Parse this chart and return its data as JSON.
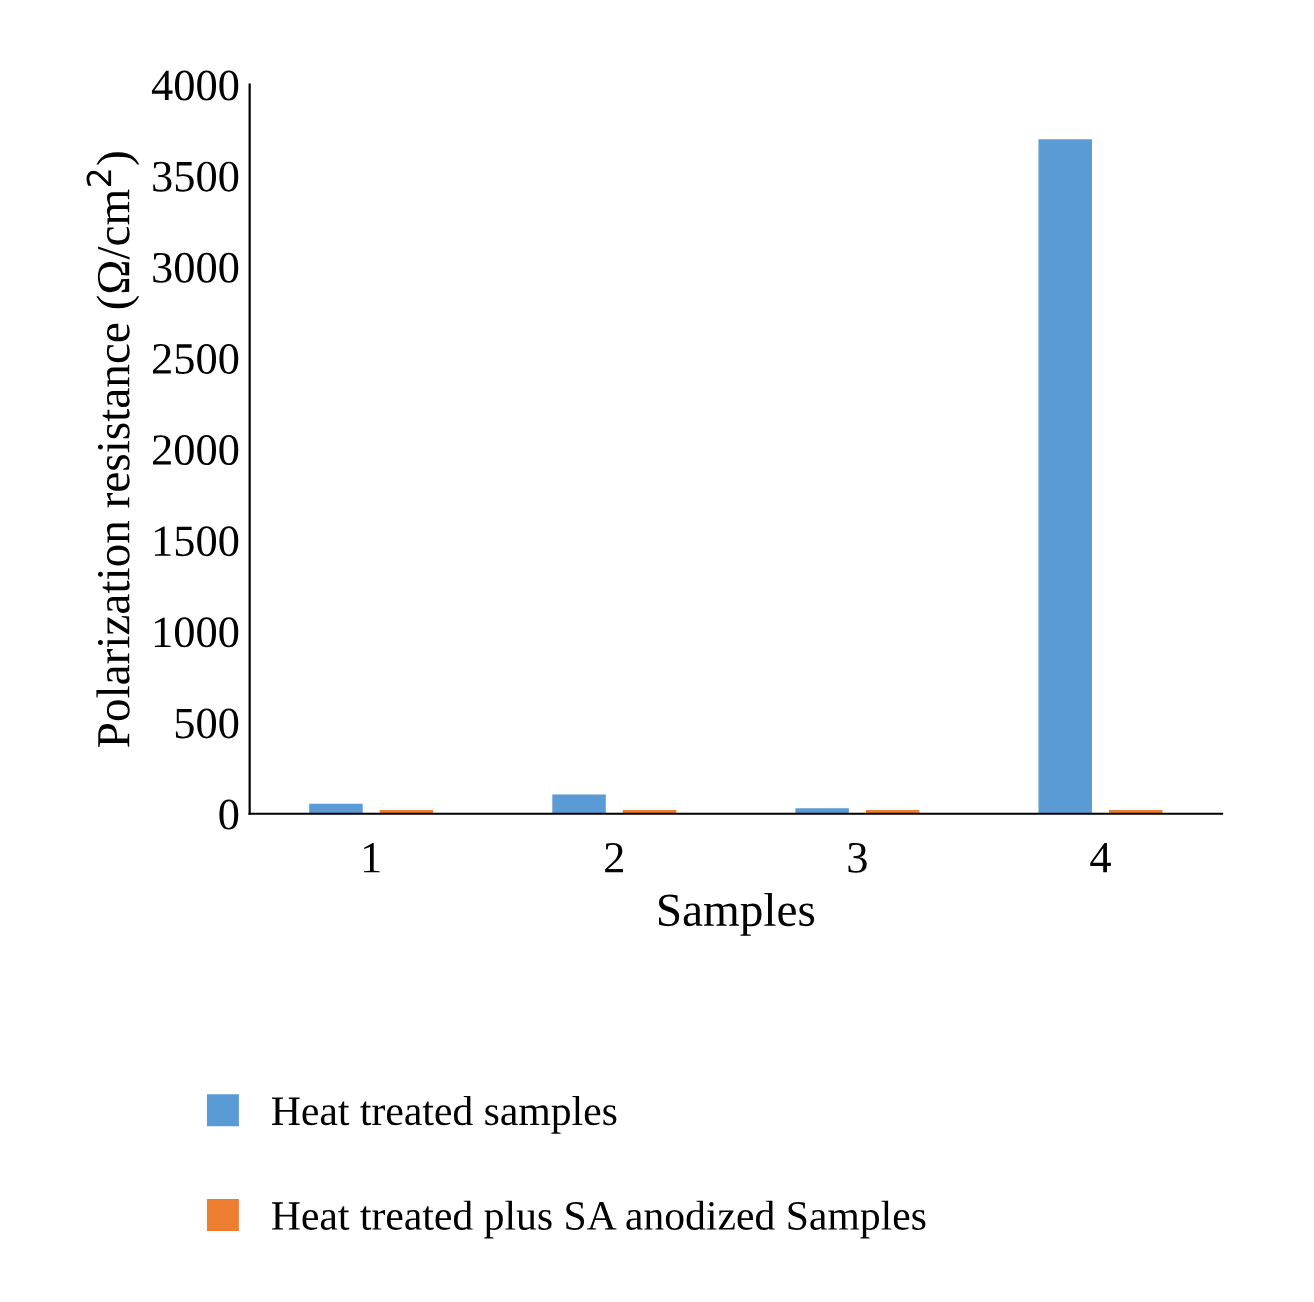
{
  "chart_data": {
    "type": "bar",
    "xlabel": "Samples",
    "ylabel": "Polarization resistance (Ω/cm$^{2}$)",
    "categories": [
      "1",
      "2",
      "3",
      "4"
    ],
    "series": [
      {
        "name": "Heat treated samples",
        "color": "#5b9bd5",
        "values": [
          55,
          105,
          30,
          3700
        ]
      },
      {
        "name": "Heat treated plus SA anodized Samples",
        "color": "#ed7d31",
        "values": [
          20,
          20,
          20,
          20
        ]
      }
    ],
    "ylim": [
      0,
      4000
    ],
    "yticks": [
      0,
      500,
      1000,
      1500,
      2000,
      2500,
      3000,
      3500,
      4000
    ],
    "grid": false,
    "legend": "bottom left"
  }
}
